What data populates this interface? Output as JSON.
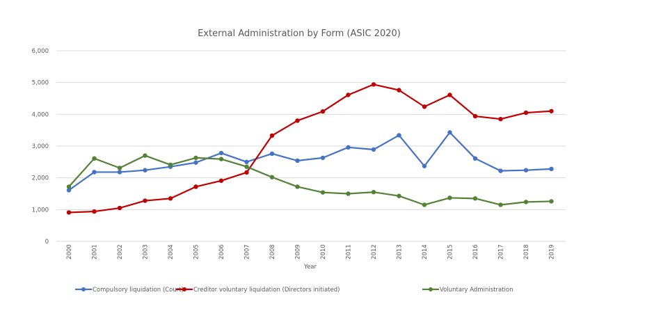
{
  "chart_data": {
    "type": "line",
    "title": "External Administration by Form (ASIC 2020)",
    "xlabel": "Year",
    "ylabel": "",
    "ylim": [
      0,
      6000
    ],
    "yticks": [
      "0",
      "1,000",
      "2,000",
      "3,000",
      "4,000",
      "5,000",
      "6,000"
    ],
    "ytick_values": [
      0,
      1000,
      2000,
      3000,
      4000,
      5000,
      6000
    ],
    "grid": true,
    "legend_position": "bottom",
    "categories": [
      "2000",
      "2001",
      "2002",
      "2003",
      "2004",
      "2005",
      "2006",
      "2007",
      "2008",
      "2009",
      "2010",
      "2011",
      "2012",
      "2013",
      "2014",
      "2015",
      "2016",
      "2017",
      "2018",
      "2019"
    ],
    "series": [
      {
        "name": "Compulsory liquidation (Court)",
        "color": "#4472c4",
        "values": [
          1610,
          2180,
          2180,
          2240,
          2350,
          2480,
          2780,
          2500,
          2760,
          2540,
          2630,
          2960,
          2890,
          3340,
          2370,
          3430,
          2610,
          2220,
          2240,
          2280
        ]
      },
      {
        "name": "Creditor voluntary liquidation (Directors initiated)",
        "color": "#c00000",
        "values": [
          910,
          940,
          1050,
          1280,
          1350,
          1720,
          1910,
          2170,
          3330,
          3800,
          4090,
          4610,
          4940,
          4760,
          4240,
          4610,
          3940,
          3850,
          4050,
          4100
        ]
      },
      {
        "name": "Voluntary Administration",
        "color": "#548235",
        "values": [
          1720,
          2610,
          2310,
          2700,
          2410,
          2630,
          2590,
          2350,
          2020,
          1720,
          1540,
          1500,
          1550,
          1430,
          1150,
          1370,
          1350,
          1150,
          1240,
          1260
        ]
      }
    ]
  }
}
